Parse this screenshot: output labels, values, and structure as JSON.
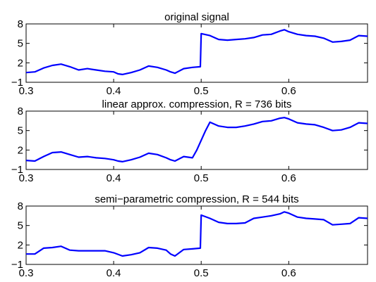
{
  "colors": {
    "line": "#0000ff",
    "axes": "#000000",
    "background": "#ffffff"
  },
  "chart_data": [
    {
      "type": "line",
      "title": "original signal",
      "xlabel": "",
      "ylabel": "",
      "xlim": [
        0.3,
        0.69
      ],
      "ylim": [
        -1,
        8
      ],
      "xticks": [
        0.3,
        0.4,
        0.5,
        0.6
      ],
      "yticks": [
        -1,
        2,
        5,
        8
      ],
      "series": [
        {
          "x": [
            0.3,
            0.31,
            0.32,
            0.33,
            0.34,
            0.35,
            0.36,
            0.37,
            0.38,
            0.39,
            0.4,
            0.405,
            0.41,
            0.42,
            0.43,
            0.44,
            0.45,
            0.46,
            0.465,
            0.47,
            0.48,
            0.49,
            0.499,
            0.5,
            0.51,
            0.52,
            0.53,
            0.54,
            0.55,
            0.56,
            0.57,
            0.58,
            0.59,
            0.595,
            0.6,
            0.61,
            0.62,
            0.63,
            0.64,
            0.65,
            0.66,
            0.67,
            0.68,
            0.69
          ],
          "y": [
            0.5,
            0.6,
            1.2,
            1.6,
            1.8,
            1.4,
            0.9,
            1.1,
            0.9,
            0.7,
            0.6,
            0.3,
            0.2,
            0.5,
            0.9,
            1.5,
            1.3,
            0.9,
            0.6,
            0.4,
            1.1,
            1.3,
            1.4,
            6.5,
            6.2,
            5.6,
            5.5,
            5.6,
            5.7,
            5.9,
            6.3,
            6.4,
            6.9,
            7.1,
            6.8,
            6.4,
            6.2,
            6.1,
            5.8,
            5.2,
            5.3,
            5.5,
            6.2,
            6.1
          ]
        }
      ]
    },
    {
      "type": "line",
      "title": "linear approx. compression, R = 736 bits",
      "xlabel": "",
      "ylabel": "",
      "xlim": [
        0.3,
        0.69
      ],
      "ylim": [
        -1,
        8
      ],
      "xticks": [
        0.3,
        0.4,
        0.5,
        0.6
      ],
      "yticks": [
        -1,
        2,
        5,
        8
      ],
      "series": [
        {
          "x": [
            0.3,
            0.31,
            0.32,
            0.33,
            0.34,
            0.35,
            0.36,
            0.37,
            0.38,
            0.39,
            0.4,
            0.405,
            0.41,
            0.42,
            0.43,
            0.44,
            0.45,
            0.46,
            0.465,
            0.47,
            0.48,
            0.49,
            0.495,
            0.505,
            0.51,
            0.52,
            0.53,
            0.54,
            0.55,
            0.56,
            0.57,
            0.58,
            0.59,
            0.595,
            0.6,
            0.61,
            0.62,
            0.63,
            0.64,
            0.65,
            0.66,
            0.67,
            0.68,
            0.69
          ],
          "y": [
            0.4,
            0.3,
            1.0,
            1.6,
            1.7,
            1.3,
            0.9,
            1.0,
            0.8,
            0.7,
            0.5,
            0.3,
            0.2,
            0.5,
            0.9,
            1.5,
            1.3,
            0.8,
            0.5,
            0.3,
            1.0,
            0.8,
            2.0,
            5.0,
            6.3,
            5.7,
            5.5,
            5.5,
            5.7,
            6.0,
            6.4,
            6.5,
            6.9,
            7.0,
            6.8,
            6.2,
            6.0,
            5.9,
            5.5,
            5.0,
            5.1,
            5.5,
            6.2,
            6.1
          ]
        }
      ]
    },
    {
      "type": "line",
      "title": "semi−parametric compression, R = 544 bits",
      "xlabel": "",
      "ylabel": "",
      "xlim": [
        0.3,
        0.69
      ],
      "ylim": [
        -1,
        8
      ],
      "xticks": [
        0.3,
        0.4,
        0.5,
        0.6
      ],
      "yticks": [
        -1,
        2,
        5,
        8
      ],
      "series": [
        {
          "x": [
            0.3,
            0.31,
            0.32,
            0.33,
            0.34,
            0.35,
            0.36,
            0.37,
            0.38,
            0.39,
            0.4,
            0.41,
            0.42,
            0.43,
            0.44,
            0.45,
            0.46,
            0.465,
            0.47,
            0.48,
            0.49,
            0.499,
            0.5,
            0.51,
            0.52,
            0.53,
            0.54,
            0.55,
            0.56,
            0.57,
            0.58,
            0.59,
            0.595,
            0.6,
            0.61,
            0.62,
            0.63,
            0.64,
            0.65,
            0.66,
            0.67,
            0.68,
            0.69
          ],
          "y": [
            0.6,
            0.6,
            1.5,
            1.6,
            1.8,
            1.2,
            1.1,
            1.1,
            1.1,
            1.1,
            0.8,
            0.3,
            0.5,
            0.8,
            1.6,
            1.5,
            1.2,
            0.6,
            0.3,
            1.3,
            1.4,
            1.5,
            6.6,
            6.1,
            5.5,
            5.3,
            5.3,
            5.4,
            6.1,
            6.3,
            6.5,
            6.8,
            7.1,
            6.9,
            6.3,
            6.1,
            6.0,
            5.9,
            5.1,
            5.2,
            5.3,
            6.2,
            6.1
          ]
        }
      ]
    }
  ]
}
